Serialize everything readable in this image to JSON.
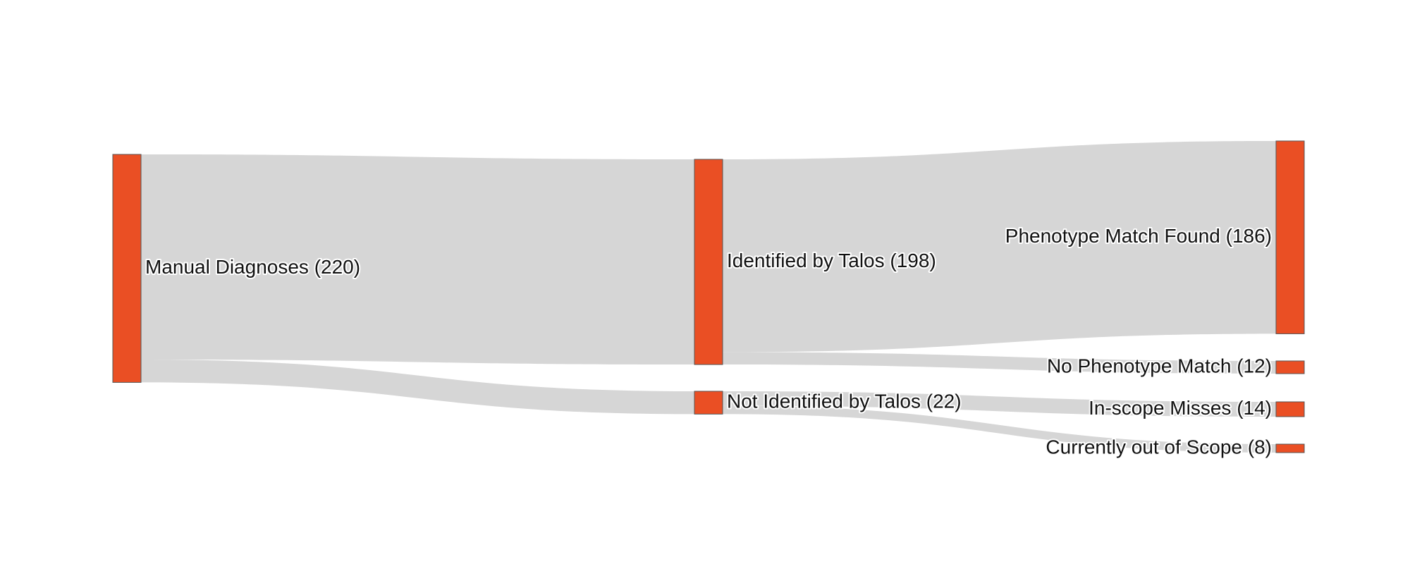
{
  "diagram": {
    "type": "sankey",
    "colors": {
      "node": "#ea4f24",
      "link": "#d6d6d6"
    },
    "nodes": [
      {
        "id": "manual",
        "label": "Manual Diagnoses (220)",
        "value": 220,
        "column": 0
      },
      {
        "id": "identified",
        "label": "Identified by Talos (198)",
        "value": 198,
        "column": 1
      },
      {
        "id": "not_identified",
        "label": "Not Identified by Talos (22)",
        "value": 22,
        "column": 1
      },
      {
        "id": "phenotype_match",
        "label": "Phenotype Match Found (186)",
        "value": 186,
        "column": 2
      },
      {
        "id": "no_phenotype_match",
        "label": "No Phenotype Match (12)",
        "value": 12,
        "column": 2
      },
      {
        "id": "inscope_misses",
        "label": "In-scope Misses (14)",
        "value": 14,
        "column": 2
      },
      {
        "id": "out_of_scope",
        "label": "Currently out of Scope (8)",
        "value": 8,
        "column": 2
      }
    ],
    "links": [
      {
        "source": "manual",
        "target": "identified",
        "value": 198
      },
      {
        "source": "manual",
        "target": "not_identified",
        "value": 22
      },
      {
        "source": "identified",
        "target": "phenotype_match",
        "value": 186
      },
      {
        "source": "identified",
        "target": "no_phenotype_match",
        "value": 12
      },
      {
        "source": "not_identified",
        "target": "inscope_misses",
        "value": 14
      },
      {
        "source": "not_identified",
        "target": "out_of_scope",
        "value": 8
      }
    ]
  }
}
